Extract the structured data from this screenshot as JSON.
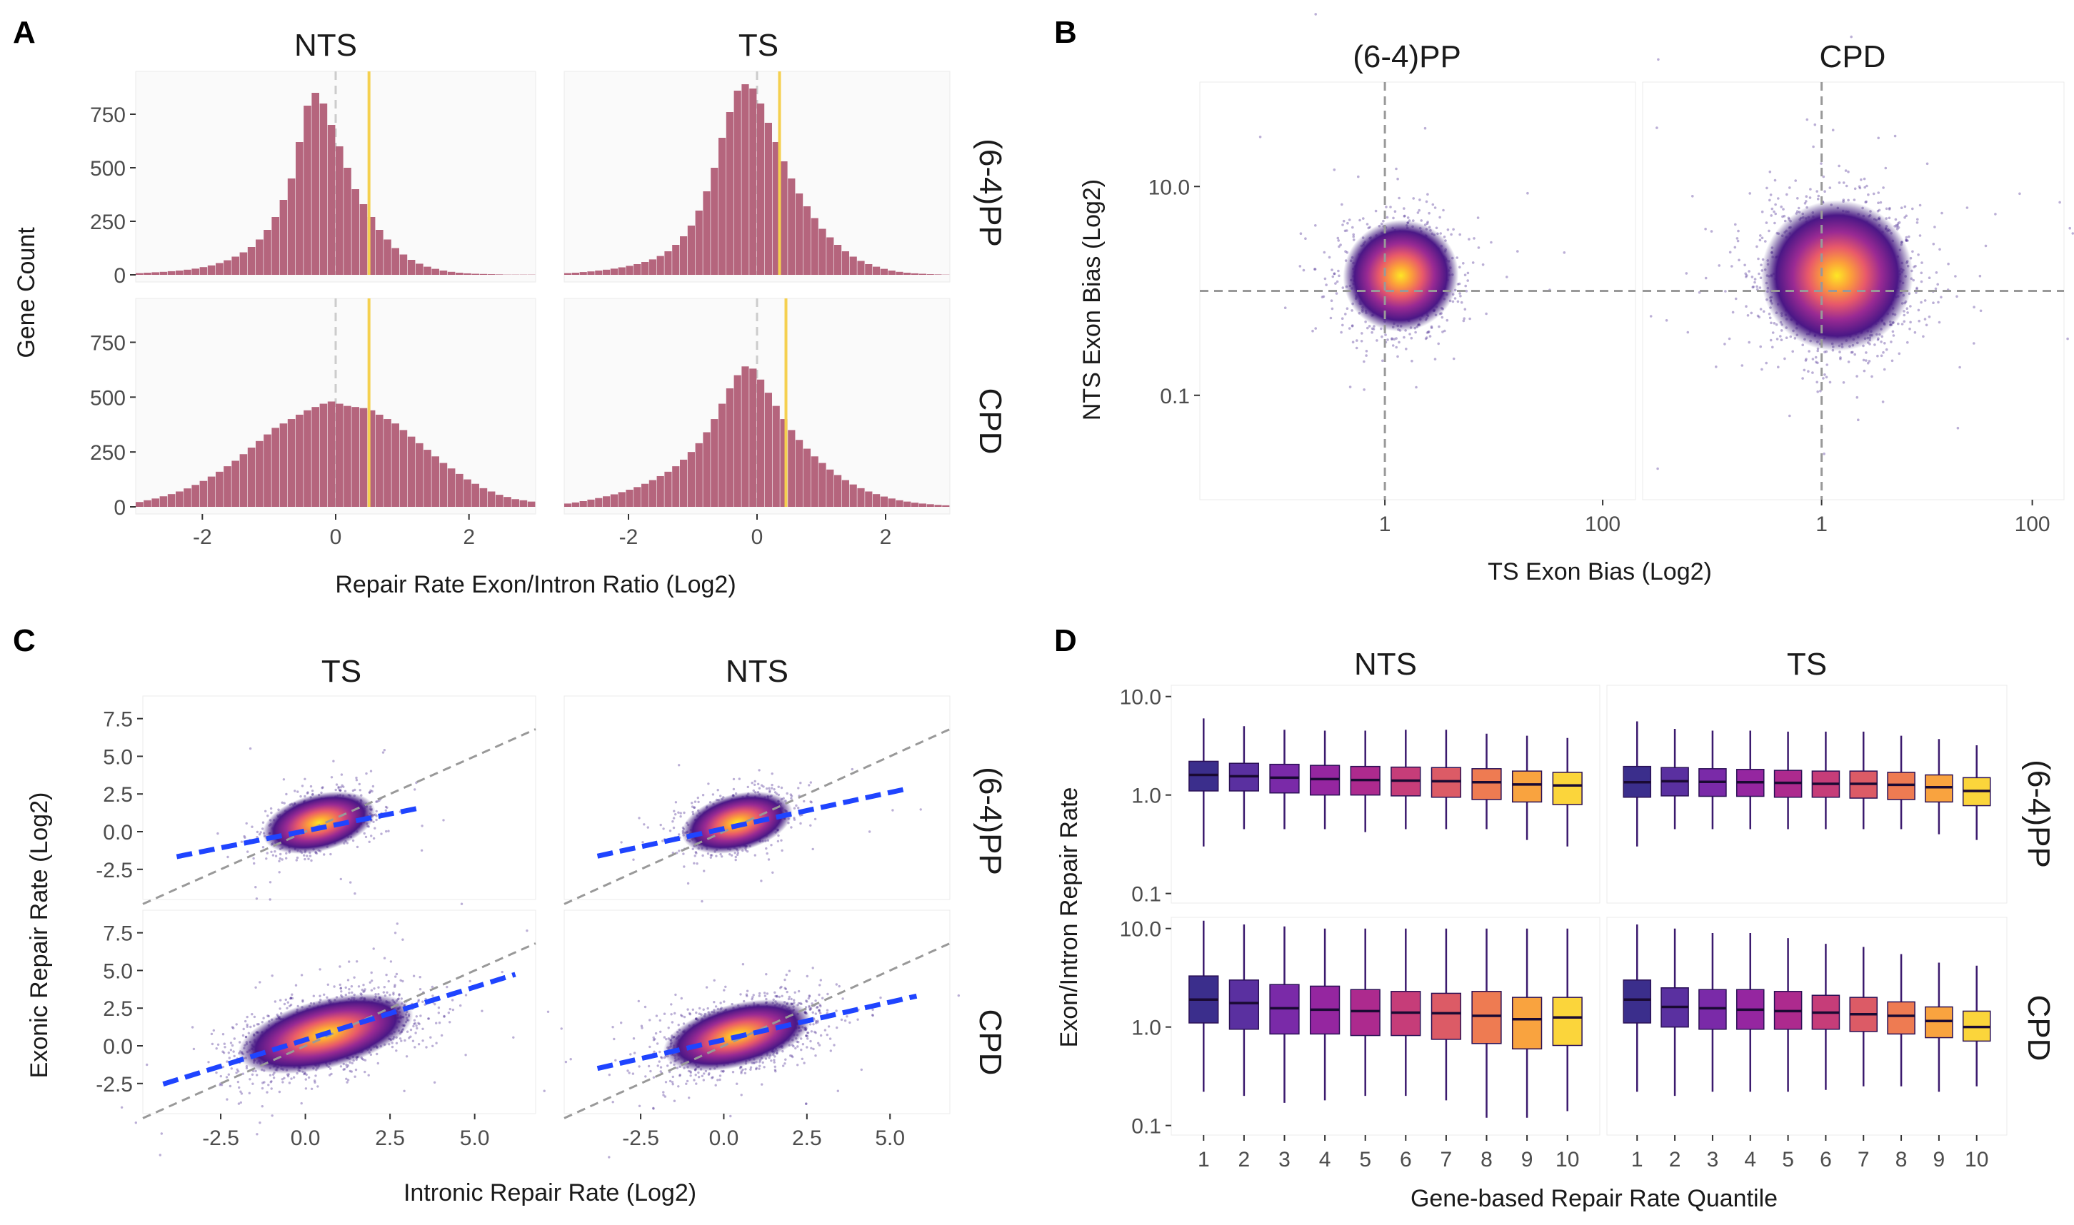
{
  "colors": {
    "hist_fill": "#b5657d",
    "mean_line": "#f5d04f",
    "zero_line": "#cccccc",
    "fit_line": "#1f44ff",
    "ref_line": "#999999",
    "density_palette": [
      "#2b0f6e",
      "#5a1a8c",
      "#8f2c8c",
      "#c4417a",
      "#ec6b55",
      "#fca139",
      "#fde725"
    ],
    "box_palette": [
      "#3b2e8c",
      "#5a30a0",
      "#7a2aa8",
      "#9526a0",
      "#ad2a8e",
      "#c63d79",
      "#dc5b66",
      "#ee7b52",
      "#f9a33f",
      "#fbd53b",
      "#f4f51e"
    ]
  },
  "panels": {
    "A": {
      "label": "A",
      "cols": [
        "NTS",
        "TS"
      ],
      "rows": [
        "(6-4)PP",
        "CPD"
      ],
      "ylabel": "Gene Count",
      "xlabel": "Repair Rate Exon/Intron Ratio (Log2)",
      "x_ticks": [
        "-2",
        "0",
        "2"
      ],
      "y_ticks": [
        "0",
        "250",
        "500",
        "750"
      ]
    },
    "B": {
      "label": "B",
      "cols": [
        "(6-4)PP",
        "CPD"
      ],
      "ylabel": "NTS Exon Bias (Log2)",
      "xlabel": "TS Exon Bias (Log2)",
      "x_ticks": [
        "1",
        "100"
      ],
      "y_ticks": [
        "10.0",
        "0.1"
      ]
    },
    "C": {
      "label": "C",
      "cols": [
        "TS",
        "NTS"
      ],
      "rows": [
        "(6-4)PP",
        "CPD"
      ],
      "ylabel": "Exonic Repair Rate (Log2)",
      "xlabel": "Intronic Repair Rate (Log2)",
      "x_ticks": [
        "-2.5",
        "0.0",
        "2.5",
        "5.0"
      ],
      "y_ticks": [
        "7.5",
        "5.0",
        "2.5",
        "0.0",
        "-2.5"
      ]
    },
    "D": {
      "label": "D",
      "cols": [
        "NTS",
        "TS"
      ],
      "rows": [
        "(6-4)PP",
        "CPD"
      ],
      "ylabel": "Exon/Intron Repair Rate",
      "xlabel": "Gene-based Repair Rate Quantile",
      "x_ticks": [
        "1",
        "2",
        "3",
        "4",
        "5",
        "6",
        "7",
        "8",
        "9",
        "10"
      ],
      "y_ticks": [
        "10.0",
        "1.0",
        "0.1"
      ]
    }
  },
  "chart_data": [
    {
      "panel": "A",
      "type": "bar",
      "xlabel": "Repair Rate Exon/Intron Ratio (Log2)",
      "ylabel": "Gene Count",
      "xlim": [
        -3,
        3
      ],
      "ylim": [
        0,
        950
      ],
      "facets": [
        {
          "col": "NTS",
          "row": "(6-4)PP",
          "mean": 0.5,
          "bin_centers_range": [
            -2.9,
            2.9
          ],
          "counts": [
            8,
            10,
            12,
            14,
            17,
            20,
            24,
            29,
            36,
            44,
            55,
            68,
            85,
            105,
            130,
            165,
            210,
            270,
            350,
            450,
            620,
            790,
            850,
            800,
            700,
            600,
            500,
            400,
            330,
            270,
            210,
            165,
            125,
            95,
            70,
            52,
            38,
            28,
            20,
            14,
            10,
            7,
            5,
            4,
            3,
            2,
            1,
            1,
            1,
            1
          ]
        },
        {
          "col": "TS",
          "row": "(6-4)PP",
          "mean": 0.35,
          "bin_centers_range": [
            -2.9,
            2.9
          ],
          "counts": [
            8,
            10,
            13,
            16,
            20,
            24,
            29,
            35,
            42,
            50,
            60,
            72,
            88,
            110,
            140,
            180,
            230,
            300,
            390,
            500,
            640,
            760,
            860,
            890,
            870,
            800,
            710,
            620,
            530,
            450,
            380,
            320,
            265,
            215,
            175,
            140,
            110,
            85,
            65,
            50,
            38,
            28,
            20,
            14,
            10,
            7,
            5,
            3,
            2,
            1
          ]
        },
        {
          "col": "NTS",
          "row": "CPD",
          "mean": 0.5,
          "bin_centers_range": [
            -2.9,
            2.9
          ],
          "counts": [
            22,
            30,
            38,
            48,
            58,
            70,
            84,
            100,
            118,
            138,
            160,
            185,
            210,
            240,
            270,
            300,
            330,
            360,
            380,
            400,
            420,
            440,
            455,
            470,
            480,
            470,
            460,
            455,
            450,
            440,
            420,
            400,
            380,
            350,
            320,
            290,
            260,
            230,
            200,
            175,
            150,
            125,
            105,
            85,
            70,
            55,
            45,
            35,
            30,
            24
          ]
        },
        {
          "col": "TS",
          "row": "CPD",
          "mean": 0.45,
          "bin_centers_range": [
            -2.9,
            2.9
          ],
          "counts": [
            15,
            20,
            26,
            33,
            40,
            48,
            57,
            67,
            78,
            90,
            105,
            122,
            140,
            160,
            185,
            215,
            250,
            290,
            340,
            400,
            470,
            540,
            600,
            640,
            630,
            580,
            520,
            460,
            400,
            350,
            305,
            265,
            230,
            200,
            170,
            145,
            122,
            102,
            85,
            70,
            58,
            47,
            38,
            30,
            24,
            19,
            15,
            12,
            9,
            7
          ]
        }
      ]
    },
    {
      "panel": "B",
      "type": "scatter",
      "xlabel": "TS Exon Bias (Log2)",
      "ylabel": "NTS Exon Bias (Log2)",
      "scale": "log10",
      "xlim": [
        0.02,
        200
      ],
      "ylim": [
        0.01,
        100
      ],
      "ref_x": 1,
      "ref_y": 1,
      "facets": [
        {
          "col": "(6-4)PP",
          "center": [
            1.4,
            1.4
          ],
          "spread_log10": [
            0.28,
            0.28
          ],
          "n_points": 9000
        },
        {
          "col": "CPD",
          "center": [
            1.4,
            1.4
          ],
          "spread_log10": [
            0.38,
            0.38
          ],
          "n_points": 14000
        }
      ]
    },
    {
      "panel": "C",
      "type": "scatter",
      "xlabel": "Intronic Repair Rate (Log2)",
      "ylabel": "Exonic Repair Rate (Log2)",
      "xlim": [
        -4.8,
        6.8
      ],
      "ylim": [
        -4.5,
        9.0
      ],
      "facets": [
        {
          "col": "TS",
          "row": "(6-4)PP",
          "center": [
            0.4,
            0.6
          ],
          "spread": [
            0.9,
            1.0
          ],
          "fit": {
            "slope": 0.45,
            "intercept": 0.05,
            "x_range": [
              -3.8,
              3.3
            ]
          }
        },
        {
          "col": "NTS",
          "row": "(6-4)PP",
          "center": [
            0.4,
            0.6
          ],
          "spread": [
            0.9,
            1.0
          ],
          "fit": {
            "slope": 0.48,
            "intercept": 0.2,
            "x_range": [
              -3.8,
              5.5
            ]
          }
        },
        {
          "col": "TS",
          "row": "CPD",
          "center": [
            0.6,
            0.8
          ],
          "spread": [
            1.4,
            1.2
          ],
          "fit": {
            "slope": 0.7,
            "intercept": 0.4,
            "x_range": [
              -4.2,
              6.2
            ]
          }
        },
        {
          "col": "NTS",
          "row": "CPD",
          "center": [
            0.4,
            0.7
          ],
          "spread": [
            1.2,
            1.1
          ],
          "fit": {
            "slope": 0.5,
            "intercept": 0.4,
            "x_range": [
              -3.8,
              5.8
            ]
          }
        }
      ]
    },
    {
      "panel": "D",
      "type": "box",
      "xlabel": "Gene-based Repair Rate Quantile",
      "ylabel": "Exon/Intron Repair Rate",
      "scale": "log10",
      "ylim": [
        0.08,
        13
      ],
      "categories": [
        "1",
        "2",
        "3",
        "4",
        "5",
        "6",
        "7",
        "8",
        "9",
        "10"
      ],
      "facets": [
        {
          "col": "NTS",
          "row": "(6-4)PP",
          "q1": [
            1.1,
            1.1,
            1.05,
            1.0,
            1.0,
            0.98,
            0.95,
            0.9,
            0.85,
            0.8
          ],
          "median": [
            1.6,
            1.55,
            1.5,
            1.45,
            1.42,
            1.4,
            1.38,
            1.35,
            1.28,
            1.25
          ],
          "q3": [
            2.2,
            2.1,
            2.05,
            2.0,
            1.95,
            1.92,
            1.9,
            1.85,
            1.75,
            1.7
          ],
          "whisker_low": [
            0.3,
            0.45,
            0.45,
            0.45,
            0.42,
            0.45,
            0.45,
            0.45,
            0.35,
            0.3
          ],
          "whisker_high": [
            6.0,
            5.0,
            4.6,
            4.5,
            4.5,
            4.6,
            4.6,
            4.2,
            4.0,
            3.8
          ]
        },
        {
          "col": "TS",
          "row": "(6-4)PP",
          "q1": [
            0.95,
            0.98,
            0.97,
            0.97,
            0.95,
            0.95,
            0.93,
            0.9,
            0.85,
            0.78
          ],
          "median": [
            1.35,
            1.38,
            1.36,
            1.35,
            1.33,
            1.3,
            1.3,
            1.27,
            1.2,
            1.1
          ],
          "q3": [
            1.95,
            1.9,
            1.85,
            1.82,
            1.78,
            1.75,
            1.75,
            1.7,
            1.6,
            1.5
          ],
          "whisker_low": [
            0.3,
            0.45,
            0.45,
            0.45,
            0.45,
            0.45,
            0.45,
            0.45,
            0.4,
            0.35
          ],
          "whisker_high": [
            5.6,
            4.7,
            4.5,
            4.5,
            4.4,
            4.4,
            4.4,
            4.0,
            3.7,
            3.2
          ]
        },
        {
          "col": "NTS",
          "row": "CPD",
          "q1": [
            1.1,
            0.95,
            0.85,
            0.85,
            0.82,
            0.82,
            0.75,
            0.68,
            0.6,
            0.65
          ],
          "median": [
            1.9,
            1.75,
            1.55,
            1.5,
            1.45,
            1.4,
            1.38,
            1.3,
            1.2,
            1.25
          ],
          "q3": [
            3.3,
            3.0,
            2.7,
            2.6,
            2.4,
            2.3,
            2.2,
            2.3,
            2.0,
            2.0
          ],
          "whisker_low": [
            0.22,
            0.2,
            0.17,
            0.18,
            0.2,
            0.2,
            0.18,
            0.12,
            0.12,
            0.14
          ],
          "whisker_high": [
            12,
            11,
            10.5,
            10,
            10,
            10,
            10,
            10,
            10,
            10
          ]
        },
        {
          "col": "TS",
          "row": "CPD",
          "q1": [
            1.1,
            1.0,
            0.95,
            0.95,
            0.95,
            0.95,
            0.9,
            0.85,
            0.78,
            0.72
          ],
          "median": [
            1.9,
            1.6,
            1.55,
            1.5,
            1.45,
            1.4,
            1.35,
            1.3,
            1.15,
            1.0
          ],
          "q3": [
            3.0,
            2.5,
            2.4,
            2.4,
            2.3,
            2.1,
            2.0,
            1.8,
            1.6,
            1.45
          ],
          "whisker_low": [
            0.22,
            0.2,
            0.22,
            0.22,
            0.22,
            0.23,
            0.25,
            0.25,
            0.22,
            0.25
          ],
          "whisker_high": [
            11,
            10,
            9,
            9,
            8,
            7,
            6.5,
            5.5,
            4.5,
            4.2
          ]
        }
      ]
    }
  ]
}
